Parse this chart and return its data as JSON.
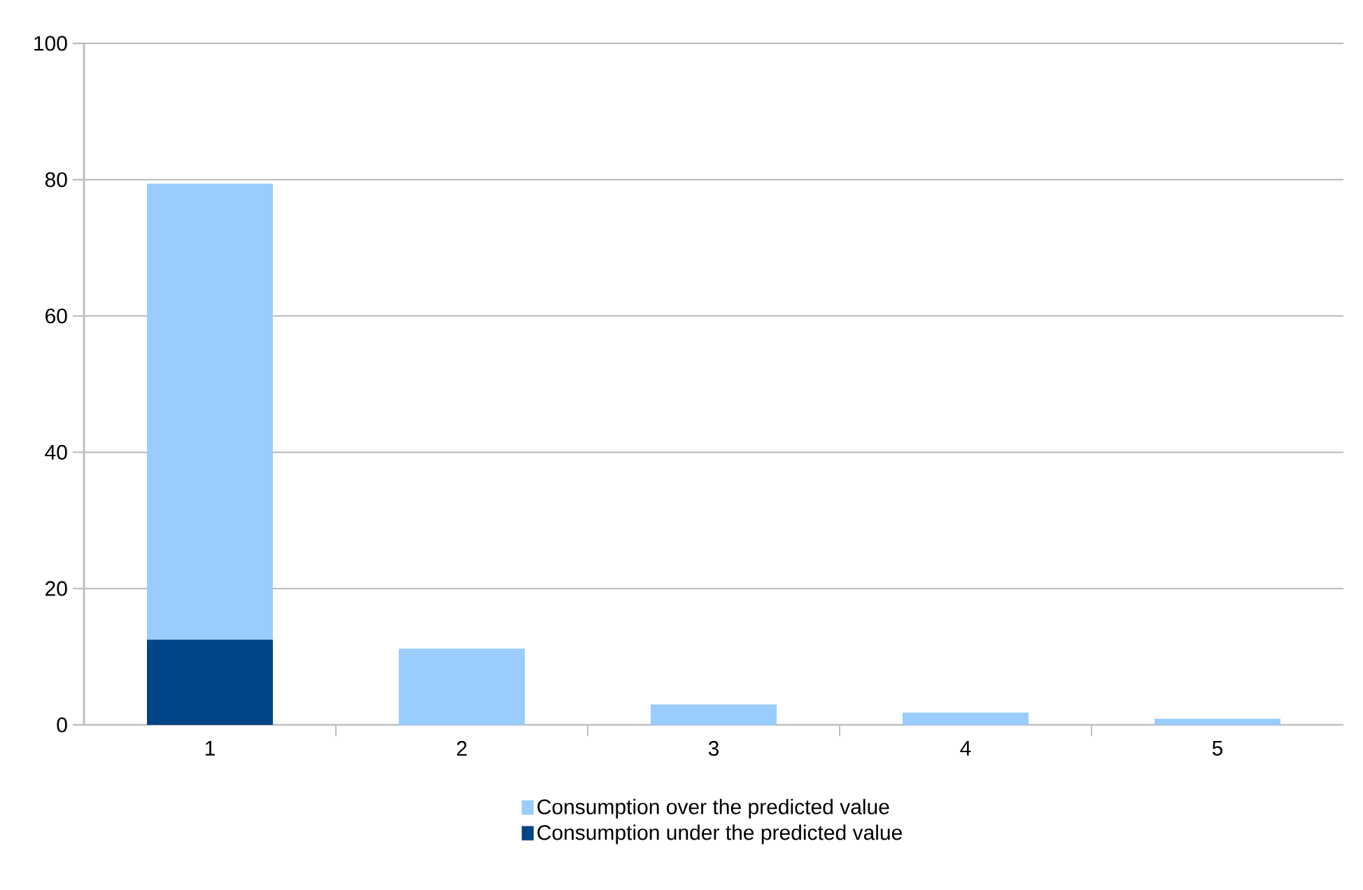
{
  "chart_data": {
    "type": "bar",
    "stacked": true,
    "categories": [
      "1",
      "2",
      "3",
      "4",
      "5"
    ],
    "series": [
      {
        "name": "Consumption under the predicted value",
        "color": "#004586",
        "values": [
          12.5,
          0,
          0,
          0,
          0
        ]
      },
      {
        "name": "Consumption over the predicted value",
        "color": "#99ccff",
        "values": [
          66.9,
          11.2,
          3.0,
          1.8,
          0.9
        ]
      }
    ],
    "ylim": [
      0,
      100
    ],
    "yticks": [
      0,
      20,
      40,
      60,
      80,
      100
    ],
    "grid": "y",
    "legend": "bottom"
  }
}
